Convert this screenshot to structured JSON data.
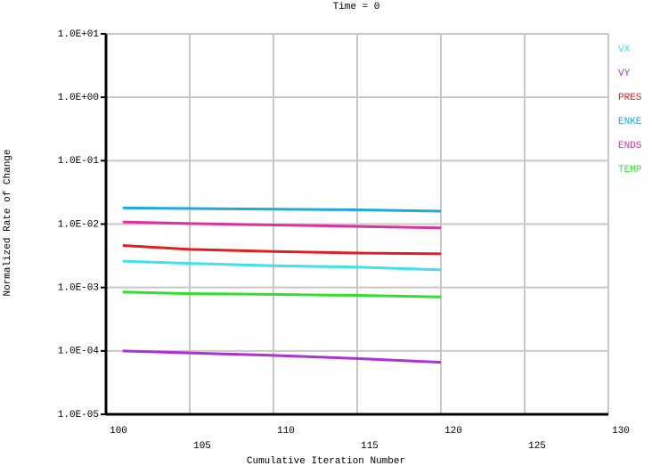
{
  "chart_data": {
    "type": "line",
    "title": "Time = 0",
    "x_label": "Cumulative Iteration Number",
    "y_label": "Normalized Rate of Change",
    "x": [
      101,
      105,
      110,
      115,
      120
    ],
    "series": [
      {
        "name": "VX",
        "color": "#40e0f0",
        "values": [
          0.0026,
          0.0024,
          0.0022,
          0.0021,
          0.0019
        ]
      },
      {
        "name": "VY",
        "color": "#b030d8",
        "values": [
          0.0001,
          9.3e-05,
          8.5e-05,
          7.6e-05,
          6.6e-05
        ]
      },
      {
        "name": "PRES",
        "color": "#e02020",
        "values": [
          0.0046,
          0.004,
          0.0037,
          0.0035,
          0.0034
        ]
      },
      {
        "name": "ENKE",
        "color": "#20a8e0",
        "values": [
          0.018,
          0.0176,
          0.0172,
          0.0168,
          0.016
        ]
      },
      {
        "name": "ENDS",
        "color": "#e030a0",
        "values": [
          0.0108,
          0.0102,
          0.0097,
          0.0092,
          0.0087
        ]
      },
      {
        "name": "TEMP",
        "color": "#30e030",
        "values": [
          0.00085,
          0.0008,
          0.00078,
          0.00075,
          0.00071
        ]
      }
    ],
    "xlim": [
      100,
      130
    ],
    "xticks": [
      100,
      105,
      110,
      115,
      120,
      125,
      130
    ],
    "ylim": [
      1e-05,
      10
    ],
    "log_scale": true,
    "yticks": [
      {
        "value": 10,
        "label": "1.0E+01"
      },
      {
        "value": 1,
        "label": "1.0E+00"
      },
      {
        "value": 0.1,
        "label": "1.0E-01"
      },
      {
        "value": 0.01,
        "label": "1.0E-02"
      },
      {
        "value": 0.001,
        "label": "1.0E-03"
      },
      {
        "value": 0.0001,
        "label": "1.0E-04"
      },
      {
        "value": 1e-05,
        "label": "1.0E-05"
      }
    ],
    "grid": true,
    "legend": "right"
  }
}
